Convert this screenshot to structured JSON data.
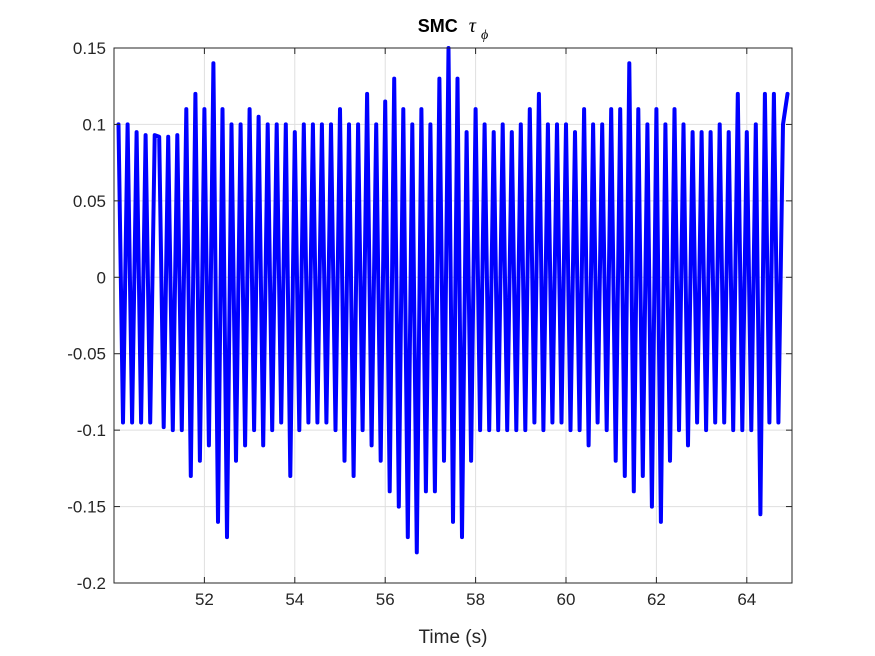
{
  "chart_data": {
    "type": "line",
    "title": {
      "text": "SMC",
      "symbol": "τ",
      "subscript": "ϕ"
    },
    "xlabel": "Time (s)",
    "ylabel": "",
    "xlim": [
      50,
      65
    ],
    "ylim": [
      -0.2,
      0.15
    ],
    "x_ticks": [
      52,
      54,
      56,
      58,
      60,
      62,
      64
    ],
    "x_tick_labels": [
      "52",
      "54",
      "56",
      "58",
      "60",
      "62",
      "64"
    ],
    "y_ticks": [
      -0.2,
      -0.15,
      -0.1,
      -0.05,
      0,
      0.05,
      0.1,
      0.15
    ],
    "y_tick_labels": [
      "-0.2",
      "-0.15",
      "-0.1",
      "-0.05",
      "0",
      "0.05",
      "0.1",
      "0.15"
    ],
    "grid": true,
    "series": [
      {
        "color": "#0000ff",
        "x": [
          50.1,
          50.2,
          50.3,
          50.4,
          50.5,
          50.6,
          50.7,
          50.8,
          50.9,
          51.0,
          51.1,
          51.2,
          51.3,
          51.4,
          51.5,
          51.6,
          51.7,
          51.8,
          51.9,
          52.0,
          52.1,
          52.2,
          52.3,
          52.4,
          52.5,
          52.6,
          52.7,
          52.8,
          52.9,
          53.0,
          53.1,
          53.2,
          53.3,
          53.4,
          53.5,
          53.6,
          53.7,
          53.8,
          53.9,
          54.0,
          54.1,
          54.2,
          54.3,
          54.4,
          54.5,
          54.6,
          54.7,
          54.8,
          54.9,
          55.0,
          55.1,
          55.2,
          55.3,
          55.4,
          55.5,
          55.6,
          55.7,
          55.8,
          55.9,
          56.0,
          56.1,
          56.2,
          56.3,
          56.4,
          56.5,
          56.6,
          56.7,
          56.8,
          56.9,
          57.0,
          57.1,
          57.2,
          57.3,
          57.4,
          57.5,
          57.6,
          57.7,
          57.8,
          57.9,
          58.0,
          58.1,
          58.2,
          58.3,
          58.4,
          58.5,
          58.6,
          58.7,
          58.8,
          58.9,
          59.0,
          59.1,
          59.2,
          59.3,
          59.4,
          59.5,
          59.6,
          59.7,
          59.8,
          59.9,
          60.0,
          60.1,
          60.2,
          60.3,
          60.4,
          60.5,
          60.6,
          60.7,
          60.8,
          60.9,
          61.0,
          61.1,
          61.2,
          61.3,
          61.4,
          61.5,
          61.6,
          61.7,
          61.8,
          61.9,
          62.0,
          62.1,
          62.2,
          62.3,
          62.4,
          62.5,
          62.6,
          62.7,
          62.8,
          62.9,
          63.0,
          63.1,
          63.2,
          63.3,
          63.4,
          63.5,
          63.6,
          63.7,
          63.8,
          63.9,
          64.0,
          64.1,
          64.2,
          64.3,
          64.4,
          64.5,
          64.6,
          64.7,
          64.8,
          64.9
        ],
        "values": [
          0.1,
          -0.095,
          0.1,
          -0.095,
          0.095,
          -0.095,
          0.093,
          -0.095,
          0.093,
          0.092,
          -0.098,
          0.092,
          -0.1,
          0.093,
          -0.1,
          0.11,
          -0.13,
          0.12,
          -0.12,
          0.11,
          -0.11,
          0.14,
          -0.16,
          0.11,
          -0.17,
          0.1,
          -0.12,
          0.1,
          -0.11,
          0.11,
          -0.1,
          0.105,
          -0.11,
          0.1,
          -0.1,
          0.1,
          -0.095,
          0.1,
          -0.13,
          0.095,
          -0.1,
          0.1,
          -0.095,
          0.1,
          -0.095,
          0.1,
          -0.095,
          0.1,
          -0.1,
          0.11,
          -0.12,
          0.1,
          -0.13,
          0.1,
          -0.1,
          0.12,
          -0.11,
          0.1,
          -0.12,
          0.115,
          -0.14,
          0.13,
          -0.15,
          0.11,
          -0.17,
          0.1,
          -0.18,
          0.11,
          -0.14,
          0.1,
          -0.14,
          0.13,
          -0.12,
          0.15,
          -0.16,
          0.13,
          -0.17,
          0.095,
          -0.12,
          0.11,
          -0.1,
          0.1,
          -0.1,
          0.095,
          -0.1,
          0.1,
          -0.1,
          0.095,
          -0.1,
          0.1,
          -0.1,
          0.11,
          -0.095,
          0.12,
          -0.1,
          0.1,
          -0.095,
          0.1,
          -0.095,
          0.1,
          -0.1,
          0.095,
          -0.1,
          0.11,
          -0.11,
          0.1,
          -0.095,
          0.1,
          -0.1,
          0.11,
          -0.12,
          0.11,
          -0.13,
          0.14,
          -0.14,
          0.11,
          -0.13,
          0.1,
          -0.15,
          0.11,
          -0.16,
          0.1,
          -0.12,
          0.11,
          -0.1,
          0.1,
          -0.11,
          0.095,
          -0.095,
          0.095,
          -0.1,
          0.095,
          -0.095,
          0.1,
          -0.095,
          0.095,
          -0.1,
          0.12,
          -0.1,
          0.095,
          -0.1,
          0.1,
          -0.155,
          0.12,
          -0.095,
          0.12,
          -0.095,
          0.1,
          0.12
        ]
      }
    ]
  }
}
